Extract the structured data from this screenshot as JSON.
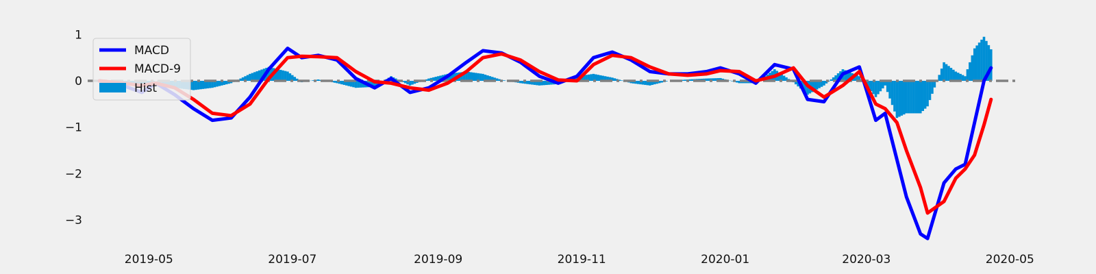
{
  "chart_data": {
    "type": "line",
    "title": "",
    "xlabel": "",
    "ylabel": "",
    "xlim": [
      "2019-04-05",
      "2020-05-05"
    ],
    "ylim": [
      -3.5,
      1.3
    ],
    "x_ticks": [
      "2019-05",
      "2019-07",
      "2019-09",
      "2019-11",
      "2020-01",
      "2020-03",
      "2020-05"
    ],
    "y_ticks": [
      1,
      0,
      -1,
      -2,
      -3
    ],
    "y_tick_labels": [
      "1",
      "0",
      "−1",
      "−2",
      "−3"
    ],
    "grid": false,
    "legend_position": "top-left",
    "zero_line": {
      "y": 0,
      "color": "#808080",
      "style": "dash-dot"
    },
    "series": [
      {
        "name": "MACD",
        "kind": "line",
        "color": "#0000ff",
        "points": [
          [
            "2019-04-10",
            0.0
          ],
          [
            "2019-04-20",
            -0.1
          ],
          [
            "2019-04-28",
            -0.25
          ],
          [
            "2019-05-04",
            -0.05
          ],
          [
            "2019-05-12",
            -0.3
          ],
          [
            "2019-05-20",
            -0.6
          ],
          [
            "2019-05-28",
            -0.85
          ],
          [
            "2019-06-05",
            -0.8
          ],
          [
            "2019-06-13",
            -0.35
          ],
          [
            "2019-06-21",
            0.25
          ],
          [
            "2019-06-29",
            0.7
          ],
          [
            "2019-07-05",
            0.5
          ],
          [
            "2019-07-12",
            0.55
          ],
          [
            "2019-07-20",
            0.45
          ],
          [
            "2019-07-28",
            0.05
          ],
          [
            "2019-08-05",
            -0.15
          ],
          [
            "2019-08-12",
            0.05
          ],
          [
            "2019-08-20",
            -0.25
          ],
          [
            "2019-08-28",
            -0.15
          ],
          [
            "2019-09-05",
            0.1
          ],
          [
            "2019-09-13",
            0.4
          ],
          [
            "2019-09-20",
            0.65
          ],
          [
            "2019-09-28",
            0.6
          ],
          [
            "2019-10-06",
            0.4
          ],
          [
            "2019-10-14",
            0.1
          ],
          [
            "2019-10-22",
            -0.05
          ],
          [
            "2019-10-30",
            0.1
          ],
          [
            "2019-11-06",
            0.5
          ],
          [
            "2019-11-14",
            0.62
          ],
          [
            "2019-11-22",
            0.45
          ],
          [
            "2019-11-30",
            0.2
          ],
          [
            "2019-12-08",
            0.15
          ],
          [
            "2019-12-16",
            0.15
          ],
          [
            "2019-12-24",
            0.2
          ],
          [
            "2019-12-30",
            0.28
          ],
          [
            "2020-01-07",
            0.15
          ],
          [
            "2020-01-14",
            -0.05
          ],
          [
            "2020-01-22",
            0.35
          ],
          [
            "2020-01-30",
            0.25
          ],
          [
            "2020-02-05",
            -0.4
          ],
          [
            "2020-02-12",
            -0.45
          ],
          [
            "2020-02-20",
            0.15
          ],
          [
            "2020-02-27",
            0.3
          ],
          [
            "2020-03-05",
            -0.85
          ],
          [
            "2020-03-09",
            -0.7
          ],
          [
            "2020-03-14",
            -1.7
          ],
          [
            "2020-03-18",
            -2.5
          ],
          [
            "2020-03-24",
            -3.3
          ],
          [
            "2020-03-27",
            -3.4
          ],
          [
            "2020-04-03",
            -2.2
          ],
          [
            "2020-04-08",
            -1.9
          ],
          [
            "2020-04-12",
            -1.8
          ],
          [
            "2020-04-16",
            -0.9
          ],
          [
            "2020-04-20",
            0.0
          ],
          [
            "2020-04-23",
            0.28
          ]
        ]
      },
      {
        "name": "MACD-9",
        "kind": "line",
        "color": "#ff0000",
        "points": [
          [
            "2019-04-10",
            0.0
          ],
          [
            "2019-04-20",
            -0.05
          ],
          [
            "2019-04-28",
            -0.1
          ],
          [
            "2019-05-04",
            -0.05
          ],
          [
            "2019-05-12",
            -0.15
          ],
          [
            "2019-05-20",
            -0.4
          ],
          [
            "2019-05-28",
            -0.7
          ],
          [
            "2019-06-05",
            -0.75
          ],
          [
            "2019-06-13",
            -0.5
          ],
          [
            "2019-06-21",
            0.05
          ],
          [
            "2019-06-29",
            0.5
          ],
          [
            "2019-07-05",
            0.53
          ],
          [
            "2019-07-12",
            0.52
          ],
          [
            "2019-07-20",
            0.5
          ],
          [
            "2019-07-28",
            0.2
          ],
          [
            "2019-08-05",
            -0.02
          ],
          [
            "2019-08-12",
            -0.05
          ],
          [
            "2019-08-20",
            -0.15
          ],
          [
            "2019-08-28",
            -0.2
          ],
          [
            "2019-09-05",
            -0.05
          ],
          [
            "2019-09-13",
            0.2
          ],
          [
            "2019-09-20",
            0.5
          ],
          [
            "2019-09-28",
            0.58
          ],
          [
            "2019-10-06",
            0.45
          ],
          [
            "2019-10-14",
            0.2
          ],
          [
            "2019-10-22",
            0.02
          ],
          [
            "2019-10-30",
            0.0
          ],
          [
            "2019-11-06",
            0.35
          ],
          [
            "2019-11-14",
            0.55
          ],
          [
            "2019-11-22",
            0.5
          ],
          [
            "2019-11-30",
            0.3
          ],
          [
            "2019-12-08",
            0.15
          ],
          [
            "2019-12-16",
            0.12
          ],
          [
            "2019-12-24",
            0.15
          ],
          [
            "2019-12-30",
            0.22
          ],
          [
            "2020-01-07",
            0.2
          ],
          [
            "2020-01-14",
            0.0
          ],
          [
            "2020-01-22",
            0.1
          ],
          [
            "2020-01-30",
            0.28
          ],
          [
            "2020-02-05",
            -0.1
          ],
          [
            "2020-02-12",
            -0.35
          ],
          [
            "2020-02-20",
            -0.1
          ],
          [
            "2020-02-27",
            0.2
          ],
          [
            "2020-03-05",
            -0.5
          ],
          [
            "2020-03-09",
            -0.6
          ],
          [
            "2020-03-14",
            -0.9
          ],
          [
            "2020-03-18",
            -1.5
          ],
          [
            "2020-03-24",
            -2.3
          ],
          [
            "2020-03-27",
            -2.85
          ],
          [
            "2020-04-03",
            -2.6
          ],
          [
            "2020-04-08",
            -2.1
          ],
          [
            "2020-04-12",
            -1.9
          ],
          [
            "2020-04-16",
            -1.6
          ],
          [
            "2020-04-20",
            -0.95
          ],
          [
            "2020-04-23",
            -0.4
          ]
        ]
      },
      {
        "name": "Hist",
        "kind": "bar",
        "color": "#008fd5",
        "points": [
          [
            "2019-04-10",
            0.0
          ],
          [
            "2019-04-20",
            -0.05
          ],
          [
            "2019-04-28",
            -0.15
          ],
          [
            "2019-05-04",
            0.0
          ],
          [
            "2019-05-12",
            -0.15
          ],
          [
            "2019-05-20",
            -0.2
          ],
          [
            "2019-05-28",
            -0.15
          ],
          [
            "2019-06-05",
            -0.05
          ],
          [
            "2019-06-13",
            0.15
          ],
          [
            "2019-06-21",
            0.3
          ],
          [
            "2019-06-29",
            0.2
          ],
          [
            "2019-07-05",
            -0.03
          ],
          [
            "2019-07-12",
            0.03
          ],
          [
            "2019-07-20",
            -0.05
          ],
          [
            "2019-07-28",
            -0.15
          ],
          [
            "2019-08-05",
            -0.13
          ],
          [
            "2019-08-12",
            0.1
          ],
          [
            "2019-08-20",
            -0.1
          ],
          [
            "2019-08-28",
            0.05
          ],
          [
            "2019-09-05",
            0.15
          ],
          [
            "2019-09-13",
            0.2
          ],
          [
            "2019-09-20",
            0.15
          ],
          [
            "2019-09-28",
            0.02
          ],
          [
            "2019-10-06",
            -0.05
          ],
          [
            "2019-10-14",
            -0.1
          ],
          [
            "2019-10-22",
            -0.07
          ],
          [
            "2019-10-30",
            0.1
          ],
          [
            "2019-11-06",
            0.15
          ],
          [
            "2019-11-14",
            0.07
          ],
          [
            "2019-11-22",
            -0.05
          ],
          [
            "2019-11-30",
            -0.1
          ],
          [
            "2019-12-08",
            0.0
          ],
          [
            "2019-12-16",
            0.03
          ],
          [
            "2019-12-24",
            0.05
          ],
          [
            "2019-12-30",
            0.06
          ],
          [
            "2020-01-07",
            -0.05
          ],
          [
            "2020-01-14",
            -0.05
          ],
          [
            "2020-01-22",
            0.25
          ],
          [
            "2020-01-30",
            -0.03
          ],
          [
            "2020-02-05",
            -0.3
          ],
          [
            "2020-02-12",
            -0.1
          ],
          [
            "2020-02-20",
            0.25
          ],
          [
            "2020-02-27",
            0.1
          ],
          [
            "2020-03-05",
            -0.35
          ],
          [
            "2020-03-09",
            -0.1
          ],
          [
            "2020-03-14",
            -0.8
          ],
          [
            "2020-03-18",
            -0.7
          ],
          [
            "2020-03-24",
            -0.7
          ],
          [
            "2020-03-27",
            -0.55
          ],
          [
            "2020-04-03",
            0.4
          ],
          [
            "2020-04-08",
            0.2
          ],
          [
            "2020-04-12",
            0.1
          ],
          [
            "2020-04-16",
            0.7
          ],
          [
            "2020-04-20",
            0.95
          ],
          [
            "2020-04-23",
            0.68
          ]
        ]
      }
    ]
  }
}
